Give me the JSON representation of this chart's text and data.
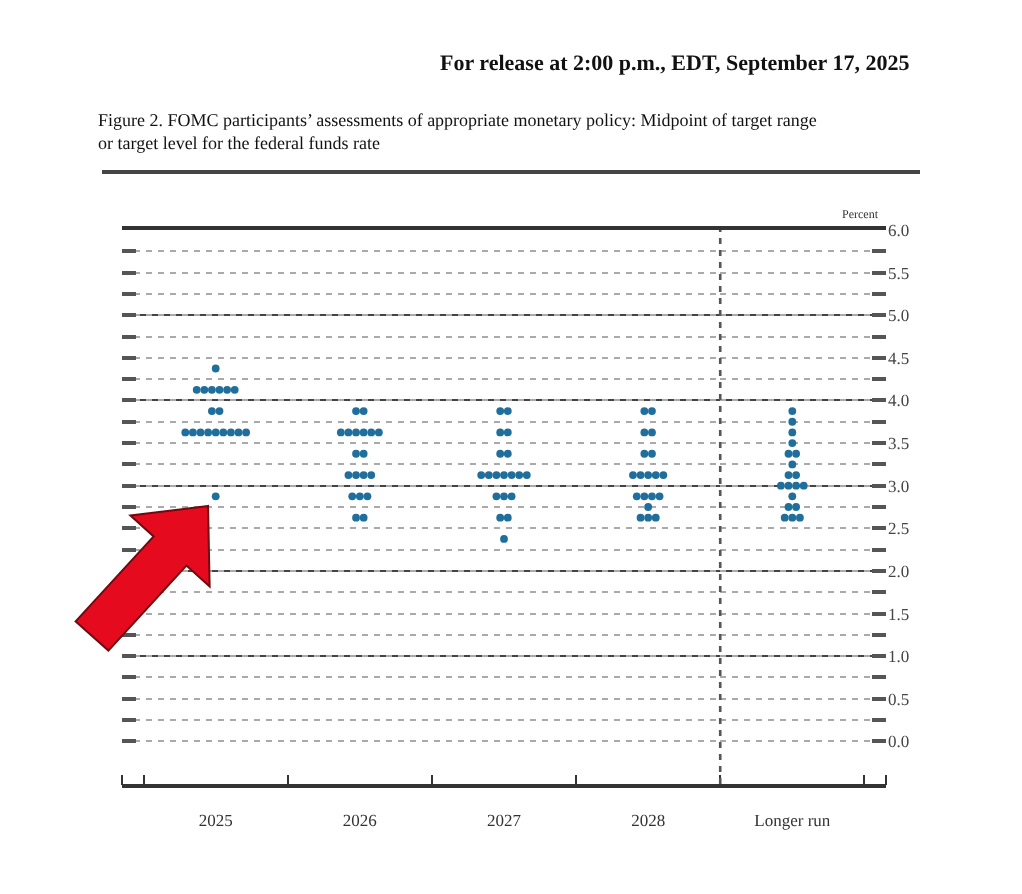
{
  "chart_data": [
    {
      "type": "scatter",
      "title": "Figure 2. FOMC participants’ assessments of appropriate monetary policy: Midpoint of target range or target level for the federal funds rate",
      "annotations": [
        "For release at 2:00 p.m., EDT, September 17, 2025"
      ],
      "categories": [
        "2025",
        "2026",
        "2027",
        "2028"
      ],
      "series": [
        {
          "color": "#1f6e9c",
          "values": [
            4.375,
            3.875,
            3.875,
            3.875
          ]
        },
        {
          "color": "#1f6e9c",
          "values": [
            4.125,
            3.875,
            3.875,
            3.875
          ]
        },
        {
          "color": "#1f6e9c",
          "values": [
            4.125,
            3.625,
            3.625,
            3.625
          ]
        },
        {
          "color": "#1f6e9c",
          "values": [
            4.125,
            3.625,
            3.625,
            3.625
          ]
        },
        {
          "color": "#1f6e9c",
          "values": [
            4.125,
            3.625,
            3.375,
            3.375
          ]
        },
        {
          "color": "#1f6e9c",
          "values": [
            4.125,
            3.625,
            3.375,
            3.375
          ]
        },
        {
          "color": "#1f6e9c",
          "values": [
            4.125,
            3.625,
            3.125,
            3.125
          ]
        },
        {
          "color": "#1f6e9c",
          "values": [
            3.875,
            3.625,
            3.125,
            3.125
          ]
        },
        {
          "color": "#1f6e9c",
          "values": [
            3.875,
            3.375,
            3.125,
            3.125
          ]
        },
        {
          "color": "#1f6e9c",
          "values": [
            3.625,
            3.375,
            3.125,
            3.125
          ]
        },
        {
          "color": "#1f6e9c",
          "values": [
            3.625,
            3.125,
            3.125,
            3.125
          ]
        },
        {
          "color": "#1f6e9c",
          "values": [
            3.625,
            3.125,
            3.125,
            2.875
          ]
        },
        {
          "color": "#1f6e9c",
          "values": [
            3.625,
            3.125,
            3.125,
            2.875
          ]
        },
        {
          "color": "#1f6e9c",
          "values": [
            3.625,
            3.125,
            2.875,
            2.875
          ]
        },
        {
          "color": "#1f6e9c",
          "values": [
            3.625,
            2.875,
            2.875,
            2.875
          ]
        },
        {
          "color": "#1f6e9c",
          "values": [
            3.625,
            2.875,
            2.875,
            2.75
          ]
        },
        {
          "color": "#1f6e9c",
          "values": [
            3.625,
            2.875,
            2.625,
            2.625
          ]
        },
        {
          "color": "#1f6e9c",
          "values": [
            3.625,
            2.625,
            2.625,
            2.625
          ]
        },
        {
          "color": "#1f6e9c",
          "values": [
            2.875,
            2.625,
            2.375,
            2.625
          ]
        }
      ],
      "ylim": [
        -0.5,
        6
      ],
      "yticks": [
        0,
        0.25,
        0.5,
        0.75,
        1,
        1.25,
        1.5,
        1.75,
        2,
        2.25,
        2.5,
        2.75,
        3,
        3.25,
        3.5,
        3.75,
        4,
        4.25,
        4.5,
        4.75,
        5,
        5.25,
        5.5,
        5.75,
        6
      ],
      "grid": "y",
      "marker": "circle",
      "tick_labels": "x"
    },
    {
      "type": "scatter",
      "ylabel": "Percent",
      "categories": [
        "Longer run"
      ],
      "series": [
        {
          "color": "#1f6e9c",
          "values": [
            3.875
          ]
        },
        {
          "color": "#1f6e9c",
          "values": [
            3.75
          ]
        },
        {
          "color": "#1f6e9c",
          "values": [
            3.625
          ]
        },
        {
          "color": "#1f6e9c",
          "values": [
            3.5
          ]
        },
        {
          "color": "#1f6e9c",
          "values": [
            3.375
          ]
        },
        {
          "color": "#1f6e9c",
          "values": [
            3.375
          ]
        },
        {
          "color": "#1f6e9c",
          "values": [
            3.25
          ]
        },
        {
          "color": "#1f6e9c",
          "values": [
            3.125
          ]
        },
        {
          "color": "#1f6e9c",
          "values": [
            3.125
          ]
        },
        {
          "color": "#1f6e9c",
          "values": [
            3.0
          ]
        },
        {
          "color": "#1f6e9c",
          "values": [
            3.0
          ]
        },
        {
          "color": "#1f6e9c",
          "values": [
            3.0
          ]
        },
        {
          "color": "#1f6e9c",
          "values": [
            3.0
          ]
        },
        {
          "color": "#1f6e9c",
          "values": [
            2.875
          ]
        },
        {
          "color": "#1f6e9c",
          "values": [
            2.75
          ]
        },
        {
          "color": "#1f6e9c",
          "values": [
            2.75
          ]
        },
        {
          "color": "#1f6e9c",
          "values": [
            2.625
          ]
        },
        {
          "color": "#1f6e9c",
          "values": [
            2.625
          ]
        },
        {
          "color": "#1f6e9c",
          "values": [
            2.625
          ]
        }
      ],
      "ylim": [
        -0.5,
        6
      ],
      "yticks": [
        {
          "value": 0,
          "label": "0.0"
        },
        {
          "value": 0.25,
          "label": null
        },
        {
          "value": 0.5,
          "label": "0.5"
        },
        {
          "value": 0.75,
          "label": null
        },
        {
          "value": 1,
          "label": "1.0"
        },
        {
          "value": 1.25,
          "label": null
        },
        {
          "value": 1.5,
          "label": "1.5"
        },
        {
          "value": 1.75,
          "label": null
        },
        {
          "value": 2,
          "label": "2.0"
        },
        {
          "value": 2.25,
          "label": null
        },
        {
          "value": 2.5,
          "label": "2.5"
        },
        {
          "value": 2.75,
          "label": null
        },
        {
          "value": 3,
          "label": "3.0"
        },
        {
          "value": 3.25,
          "label": null
        },
        {
          "value": 3.5,
          "label": "3.5"
        },
        {
          "value": 3.75,
          "label": null
        },
        {
          "value": 4,
          "label": "4.0"
        },
        {
          "value": 4.25,
          "label": null
        },
        {
          "value": 4.5,
          "label": "4.5"
        },
        {
          "value": 4.75,
          "label": null
        },
        {
          "value": 5,
          "label": "5.0"
        },
        {
          "value": 5.25,
          "label": null
        },
        {
          "value": 5.5,
          "label": "5.5"
        },
        {
          "value": 5.75,
          "label": null
        },
        {
          "value": 6,
          "label": "6.0"
        }
      ],
      "grid": "y",
      "marker": "circle"
    }
  ]
}
